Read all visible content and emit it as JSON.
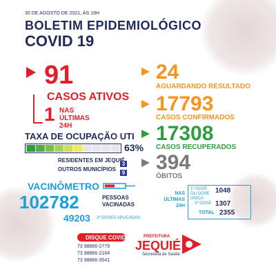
{
  "header": {
    "date": "30 DE AGOSTO DE 2021, ÀS 19H",
    "title": "BOLETIM EPIDEMIOLÓGICO",
    "subtitle": "COVID 19"
  },
  "active": {
    "number": "91",
    "label": "CASOS ATIVOS",
    "new_number": "1",
    "new_label": "NAS ÚLTIMAS 24H"
  },
  "waiting": {
    "number": "24",
    "label": "AGUARDANDO RESULTADO"
  },
  "confirmed": {
    "number": "17793",
    "label": "CASOS CONFIRMADOS"
  },
  "recovered": {
    "number": "17308",
    "label": "CASOS RECUPERADOS"
  },
  "deaths": {
    "number": "394",
    "label": "ÓBITOS"
  },
  "uti": {
    "title": "TAXA DE OCUPAÇÃO UTI",
    "rate": {
      "value": 63,
      "label": "63%"
    },
    "residents": {
      "label": "RESIDENTES EM JEQUIÉ",
      "count": "3"
    },
    "others": {
      "label": "OUTROS MUNICÍPIOS",
      "count": "9"
    }
  },
  "vaccine": {
    "title": "VACINÔMETRO",
    "vaccinated_number": "102782",
    "vaccinated_label": "PESSOAS VACINADAS",
    "second_dose_number": "49203",
    "second_dose_label": "2ª DOSES APLICADAS",
    "last24": {
      "label": "NAS ÚLTIMAS 24H",
      "first_dose_label": "1ª DOSE OU DOSE ÚNICA",
      "first_dose_number": "1048",
      "second_dose_label": "2ª DOSE",
      "second_dose_number": "1307",
      "total_label": "TOTAL",
      "total_number": "2355"
    }
  },
  "contact": {
    "title": "DISQUE COVID",
    "phones": [
      "73 98866-2779",
      "73 98866-2164",
      "73 98866-3541"
    ]
  },
  "logo": {
    "prefix": "PREFEITURA",
    "city": "JEQUIÉ",
    "secretariat": "Secretaria de Saúde"
  }
}
